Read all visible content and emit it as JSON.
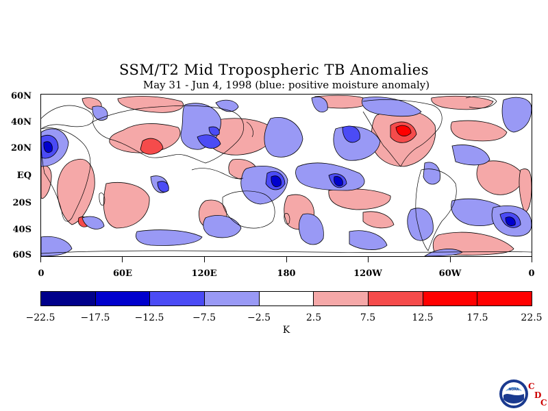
{
  "title": "SSM/T2 Mid Tropospheric TB Anomalies",
  "subtitle": "May 31 - Jun 4, 1998 (blue: positive moisture anomaly)",
  "lat_labels": [
    "60N",
    "40N",
    "20N",
    "EQ",
    "20S",
    "40S",
    "60S"
  ],
  "lon_labels": [
    "0",
    "60E",
    "120E",
    "180",
    "120W",
    "60W",
    "0"
  ],
  "colorbar": {
    "labels": [
      "−22.5",
      "−17.5",
      "−12.5",
      "−7.5",
      "−2.5",
      "2.5",
      "7.5",
      "12.5",
      "17.5",
      "22.5"
    ],
    "colors": [
      "#00008b",
      "#0000cd",
      "#4b4bf5",
      "#9999f5",
      "#ffffff",
      "#f5a8a8",
      "#f54b4b",
      "#ff0000",
      "#ff0000",
      "#8b0000"
    ],
    "units": "K"
  },
  "logo": {
    "name": "NOAA",
    "text": "NOAA",
    "cdc": [
      "C",
      "D",
      "C"
    ]
  },
  "map": {
    "extent": {
      "lon": [
        0,
        360
      ],
      "lat": [
        -60,
        60
      ]
    },
    "positive_color": "#f5a8a8",
    "positive_strong_color": "#f54b4b",
    "positive_max_color": "#ff0000",
    "negative_color": "#9999f5",
    "negative_strong_color": "#4b4bf5",
    "negative_max_color": "#0000cd"
  }
}
